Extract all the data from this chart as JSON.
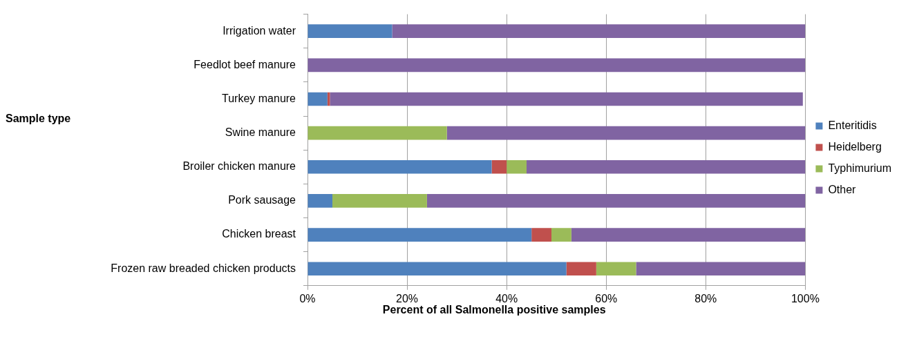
{
  "chart_data": {
    "type": "bar",
    "orientation": "horizontal",
    "stacked": true,
    "xlabel": "Percent of all Salmonella positive samples",
    "ylabel": "Sample type",
    "categories": [
      "Irrigation water",
      "Feedlot beef manure",
      "Turkey manure",
      "Swine manure",
      "Broiler chicken manure",
      "Pork sausage",
      "Chicken breast",
      "Frozen raw breaded chicken products"
    ],
    "series": [
      {
        "name": "Enteritidis",
        "color": "#4f81bd",
        "values": [
          17,
          0,
          4,
          0,
          37,
          5,
          45,
          52
        ]
      },
      {
        "name": "Heidelberg",
        "color": "#c0504d",
        "values": [
          0,
          0,
          0.5,
          0,
          3,
          0,
          4,
          6
        ]
      },
      {
        "name": "Typhimurium",
        "color": "#9bbb59",
        "values": [
          0,
          0,
          0,
          28,
          4,
          19,
          4,
          8
        ]
      },
      {
        "name": "Other",
        "color": "#8064a2",
        "values": [
          83,
          100,
          95,
          72,
          56,
          76,
          47,
          34
        ]
      }
    ],
    "xlim": [
      0,
      100
    ],
    "xticks": [
      {
        "value": 0,
        "label": "0%"
      },
      {
        "value": 20,
        "label": "20%"
      },
      {
        "value": 40,
        "label": "40%"
      },
      {
        "value": 60,
        "label": "60%"
      },
      {
        "value": 80,
        "label": "80%"
      },
      {
        "value": 100,
        "label": "100%"
      }
    ],
    "grid": "x",
    "legend": "right"
  }
}
